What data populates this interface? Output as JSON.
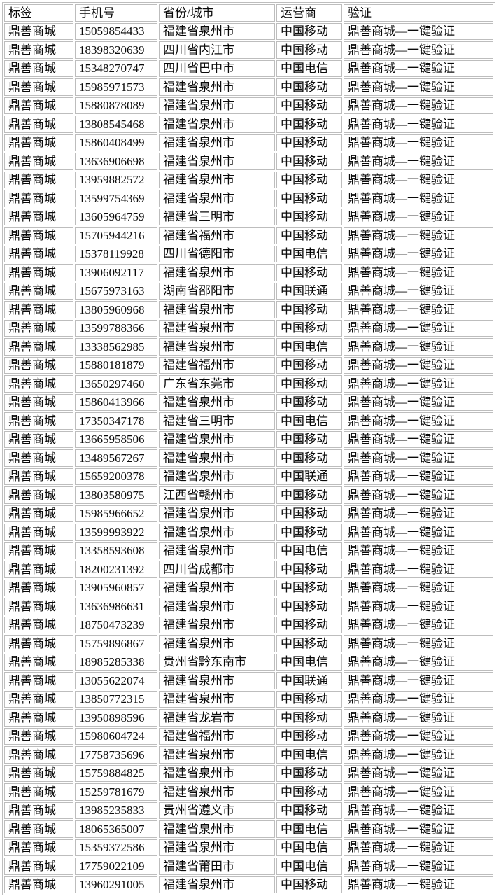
{
  "colors": {
    "border": "#bdbdbd",
    "text": "#0a0a0a",
    "background": "#ffffff"
  },
  "table": {
    "headers": [
      "标签",
      "手机号",
      "省份/城市",
      "运营商",
      "验证"
    ],
    "rows": [
      [
        "鼎善商城",
        "15059854433",
        "福建省泉州市",
        "中国移动",
        "鼎善商城—一键验证"
      ],
      [
        "鼎善商城",
        "18398320639",
        "四川省内江市",
        "中国移动",
        "鼎善商城—一键验证"
      ],
      [
        "鼎善商城",
        "15348270747",
        "四川省巴中市",
        "中国电信",
        "鼎善商城—一键验证"
      ],
      [
        "鼎善商城",
        "15985971573",
        "福建省泉州市",
        "中国移动",
        "鼎善商城—一键验证"
      ],
      [
        "鼎善商城",
        "15880878089",
        "福建省泉州市",
        "中国移动",
        "鼎善商城—一键验证"
      ],
      [
        "鼎善商城",
        "13808545468",
        "福建省泉州市",
        "中国移动",
        "鼎善商城—一键验证"
      ],
      [
        "鼎善商城",
        "15860408499",
        "福建省泉州市",
        "中国移动",
        "鼎善商城—一键验证"
      ],
      [
        "鼎善商城",
        "13636906698",
        "福建省泉州市",
        "中国移动",
        "鼎善商城—一键验证"
      ],
      [
        "鼎善商城",
        "13959882572",
        "福建省泉州市",
        "中国移动",
        "鼎善商城—一键验证"
      ],
      [
        "鼎善商城",
        "13599754369",
        "福建省泉州市",
        "中国移动",
        "鼎善商城—一键验证"
      ],
      [
        "鼎善商城",
        "13605964759",
        "福建省三明市",
        "中国移动",
        "鼎善商城—一键验证"
      ],
      [
        "鼎善商城",
        "15705944216",
        "福建省福州市",
        "中国移动",
        "鼎善商城—一键验证"
      ],
      [
        "鼎善商城",
        "15378119928",
        "四川省德阳市",
        "中国电信",
        "鼎善商城—一键验证"
      ],
      [
        "鼎善商城",
        "13906092117",
        "福建省泉州市",
        "中国移动",
        "鼎善商城—一键验证"
      ],
      [
        "鼎善商城",
        "15675973163",
        "湖南省邵阳市",
        "中国联通",
        "鼎善商城—一键验证"
      ],
      [
        "鼎善商城",
        "13805960968",
        "福建省泉州市",
        "中国移动",
        "鼎善商城—一键验证"
      ],
      [
        "鼎善商城",
        "13599788366",
        "福建省泉州市",
        "中国移动",
        "鼎善商城—一键验证"
      ],
      [
        "鼎善商城",
        "13338562985",
        "福建省泉州市",
        "中国电信",
        "鼎善商城—一键验证"
      ],
      [
        "鼎善商城",
        "15880181879",
        "福建省福州市",
        "中国移动",
        "鼎善商城—一键验证"
      ],
      [
        "鼎善商城",
        "13650297460",
        "广东省东莞市",
        "中国移动",
        "鼎善商城—一键验证"
      ],
      [
        "鼎善商城",
        "15860413966",
        "福建省泉州市",
        "中国移动",
        "鼎善商城—一键验证"
      ],
      [
        "鼎善商城",
        "17350347178",
        "福建省三明市",
        "中国电信",
        "鼎善商城—一键验证"
      ],
      [
        "鼎善商城",
        "13665958506",
        "福建省泉州市",
        "中国移动",
        "鼎善商城—一键验证"
      ],
      [
        "鼎善商城",
        "13489567267",
        "福建省泉州市",
        "中国移动",
        "鼎善商城—一键验证"
      ],
      [
        "鼎善商城",
        "15659200378",
        "福建省泉州市",
        "中国联通",
        "鼎善商城—一键验证"
      ],
      [
        "鼎善商城",
        "13803580975",
        "江西省赣州市",
        "中国移动",
        "鼎善商城—一键验证"
      ],
      [
        "鼎善商城",
        "15985966652",
        "福建省泉州市",
        "中国移动",
        "鼎善商城—一键验证"
      ],
      [
        "鼎善商城",
        "13599993922",
        "福建省泉州市",
        "中国移动",
        "鼎善商城—一键验证"
      ],
      [
        "鼎善商城",
        "13358593608",
        "福建省泉州市",
        "中国电信",
        "鼎善商城—一键验证"
      ],
      [
        "鼎善商城",
        "18200231392",
        "四川省成都市",
        "中国移动",
        "鼎善商城—一键验证"
      ],
      [
        "鼎善商城",
        "13905960857",
        "福建省泉州市",
        "中国移动",
        "鼎善商城—一键验证"
      ],
      [
        "鼎善商城",
        "13636986631",
        "福建省泉州市",
        "中国移动",
        "鼎善商城—一键验证"
      ],
      [
        "鼎善商城",
        "18750473239",
        "福建省泉州市",
        "中国移动",
        "鼎善商城—一键验证"
      ],
      [
        "鼎善商城",
        "15759896867",
        "福建省泉州市",
        "中国移动",
        "鼎善商城—一键验证"
      ],
      [
        "鼎善商城",
        "18985285338",
        "贵州省黔东南市",
        "中国电信",
        "鼎善商城—一键验证"
      ],
      [
        "鼎善商城",
        "13055622074",
        "福建省泉州市",
        "中国联通",
        "鼎善商城—一键验证"
      ],
      [
        "鼎善商城",
        "13850772315",
        "福建省泉州市",
        "中国移动",
        "鼎善商城—一键验证"
      ],
      [
        "鼎善商城",
        "13950898596",
        "福建省龙岩市",
        "中国移动",
        "鼎善商城—一键验证"
      ],
      [
        "鼎善商城",
        "15980604724",
        "福建省福州市",
        "中国移动",
        "鼎善商城—一键验证"
      ],
      [
        "鼎善商城",
        "17758735696",
        "福建省泉州市",
        "中国电信",
        "鼎善商城—一键验证"
      ],
      [
        "鼎善商城",
        "15759884825",
        "福建省泉州市",
        "中国移动",
        "鼎善商城—一键验证"
      ],
      [
        "鼎善商城",
        "15259781679",
        "福建省泉州市",
        "中国移动",
        "鼎善商城—一键验证"
      ],
      [
        "鼎善商城",
        "13985235833",
        "贵州省遵义市",
        "中国移动",
        "鼎善商城—一键验证"
      ],
      [
        "鼎善商城",
        "18065365007",
        "福建省泉州市",
        "中国电信",
        "鼎善商城—一键验证"
      ],
      [
        "鼎善商城",
        "15359372586",
        "福建省泉州市",
        "中国电信",
        "鼎善商城—一键验证"
      ],
      [
        "鼎善商城",
        "17759022109",
        "福建省莆田市",
        "中国电信",
        "鼎善商城—一键验证"
      ],
      [
        "鼎善商城",
        "13960291005",
        "福建省泉州市",
        "中国移动",
        "鼎善商城—一键验证"
      ]
    ]
  }
}
